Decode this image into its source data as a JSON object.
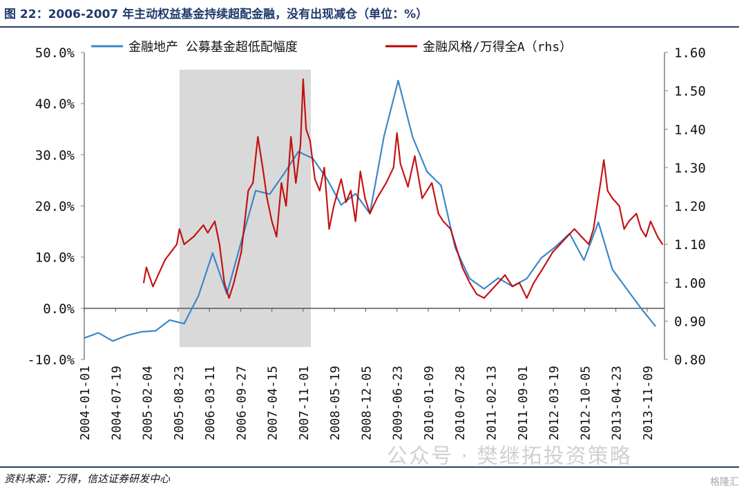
{
  "header": {
    "title": "图 22：2006-2007 年主动权益基金持续超配金融，没有出现减仓（单位：%）"
  },
  "footer": {
    "source": "资料来源：万得，信达证券研发中心",
    "watermark": "公众号 · 樊继拓投资策略",
    "brand": "格隆汇"
  },
  "colors": {
    "series1": "#3a87c8",
    "series2": "#c00000",
    "shade": "#d9d9d9",
    "axis": "#7f7f7f",
    "title": "#1f3a6b"
  },
  "chart_data": {
    "type": "line",
    "left_axis": {
      "ylim": [
        -10,
        50
      ],
      "ticks": [
        "-10.0%",
        "0.0%",
        "10.0%",
        "20.0%",
        "30.0%",
        "40.0%",
        "50.0%"
      ]
    },
    "right_axis": {
      "ylim": [
        0.8,
        1.6
      ],
      "ticks": [
        "0.80",
        "0.90",
        "1.00",
        "1.10",
        "1.20",
        "1.30",
        "1.40",
        "1.50",
        "1.60"
      ]
    },
    "x_ticks": [
      "2004-01-01",
      "2004-07-19",
      "2005-02-04",
      "2005-08-23",
      "2006-03-11",
      "2006-09-27",
      "2007-04-15",
      "2007-11-01",
      "2008-05-19",
      "2008-12-05",
      "2009-06-23",
      "2010-01-09",
      "2010-07-28",
      "2011-02-13",
      "2011-09-01",
      "2012-03-19",
      "2012-10-05",
      "2013-04-23",
      "2013-11-09"
    ],
    "xlim": [
      "2004-01-01",
      "2014-02-28"
    ],
    "shaded_region": {
      "start": "2005-09-01",
      "end": "2007-12-20"
    },
    "series": [
      {
        "name": "金融地产 公募基金超低配幅度",
        "axis": "left",
        "points": [
          [
            "2004-01-01",
            -5.8
          ],
          [
            "2004-04-01",
            -4.8
          ],
          [
            "2004-07-01",
            -6.4
          ],
          [
            "2004-10-01",
            -5.3
          ],
          [
            "2005-01-01",
            -4.6
          ],
          [
            "2005-04-01",
            -4.4
          ],
          [
            "2005-07-01",
            -2.3
          ],
          [
            "2005-10-01",
            -3.0
          ],
          [
            "2006-01-01",
            2.5
          ],
          [
            "2006-04-01",
            10.8
          ],
          [
            "2006-07-01",
            2.8
          ],
          [
            "2006-10-01",
            13.0
          ],
          [
            "2007-01-01",
            23.0
          ],
          [
            "2007-04-01",
            22.3
          ],
          [
            "2007-07-01",
            26.3
          ],
          [
            "2007-10-01",
            30.6
          ],
          [
            "2008-01-01",
            29.3
          ],
          [
            "2008-04-01",
            25.3
          ],
          [
            "2008-07-01",
            20.2
          ],
          [
            "2008-10-01",
            22.4
          ],
          [
            "2009-01-01",
            18.5
          ],
          [
            "2009-04-01",
            33.6
          ],
          [
            "2009-07-01",
            44.5
          ],
          [
            "2009-10-01",
            33.5
          ],
          [
            "2010-01-01",
            26.7
          ],
          [
            "2010-04-01",
            24.0
          ],
          [
            "2010-07-01",
            11.8
          ],
          [
            "2010-10-01",
            5.8
          ],
          [
            "2011-01-01",
            3.8
          ],
          [
            "2011-04-01",
            5.9
          ],
          [
            "2011-07-01",
            4.3
          ],
          [
            "2011-10-01",
            5.8
          ],
          [
            "2012-01-01",
            9.8
          ],
          [
            "2012-04-01",
            12.0
          ],
          [
            "2012-07-01",
            14.6
          ],
          [
            "2012-10-01",
            9.4
          ],
          [
            "2013-01-01",
            16.8
          ],
          [
            "2013-04-01",
            7.6
          ],
          [
            "2013-07-01",
            3.8
          ],
          [
            "2013-10-01",
            0.0
          ],
          [
            "2014-01-01",
            -3.5
          ]
        ]
      },
      {
        "name": "金融风格/万得全A（rhs）",
        "axis": "right",
        "points": [
          [
            "2005-01-15",
            1.0
          ],
          [
            "2005-02-01",
            1.04
          ],
          [
            "2005-03-15",
            0.99
          ],
          [
            "2005-06-01",
            1.06
          ],
          [
            "2005-08-15",
            1.1
          ],
          [
            "2005-09-01",
            1.14
          ],
          [
            "2005-10-01",
            1.1
          ],
          [
            "2005-12-01",
            1.12
          ],
          [
            "2006-02-01",
            1.15
          ],
          [
            "2006-03-01",
            1.13
          ],
          [
            "2006-04-15",
            1.16
          ],
          [
            "2006-05-15",
            1.1
          ],
          [
            "2006-06-15",
            1.0
          ],
          [
            "2006-07-15",
            0.96
          ],
          [
            "2006-08-15",
            1.0
          ],
          [
            "2006-10-01",
            1.08
          ],
          [
            "2006-11-15",
            1.24
          ],
          [
            "2006-12-15",
            1.26
          ],
          [
            "2007-01-15",
            1.38
          ],
          [
            "2007-02-15",
            1.3
          ],
          [
            "2007-03-15",
            1.22
          ],
          [
            "2007-04-15",
            1.16
          ],
          [
            "2007-05-15",
            1.12
          ],
          [
            "2007-06-15",
            1.26
          ],
          [
            "2007-07-15",
            1.2
          ],
          [
            "2007-08-15",
            1.38
          ],
          [
            "2007-09-15",
            1.26
          ],
          [
            "2007-10-15",
            1.36
          ],
          [
            "2007-11-01",
            1.53
          ],
          [
            "2007-11-20",
            1.4
          ],
          [
            "2007-12-15",
            1.37
          ],
          [
            "2008-01-15",
            1.27
          ],
          [
            "2008-02-15",
            1.24
          ],
          [
            "2008-03-15",
            1.3
          ],
          [
            "2008-04-15",
            1.14
          ],
          [
            "2008-05-15",
            1.2
          ],
          [
            "2008-07-01",
            1.27
          ],
          [
            "2008-08-01",
            1.21
          ],
          [
            "2008-09-01",
            1.24
          ],
          [
            "2008-10-01",
            1.16
          ],
          [
            "2008-11-01",
            1.29
          ],
          [
            "2008-12-01",
            1.22
          ],
          [
            "2009-01-01",
            1.18
          ],
          [
            "2009-02-15",
            1.22
          ],
          [
            "2009-04-15",
            1.26
          ],
          [
            "2009-06-01",
            1.3
          ],
          [
            "2009-06-23",
            1.39
          ],
          [
            "2009-07-15",
            1.31
          ],
          [
            "2009-09-01",
            1.25
          ],
          [
            "2009-10-15",
            1.33
          ],
          [
            "2009-12-01",
            1.22
          ],
          [
            "2010-02-01",
            1.26
          ],
          [
            "2010-03-15",
            1.18
          ],
          [
            "2010-04-15",
            1.16
          ],
          [
            "2010-06-01",
            1.14
          ],
          [
            "2010-07-01",
            1.1
          ],
          [
            "2010-08-15",
            1.04
          ],
          [
            "2010-10-01",
            1.0
          ],
          [
            "2010-11-15",
            0.97
          ],
          [
            "2011-01-01",
            0.96
          ],
          [
            "2011-02-15",
            0.98
          ],
          [
            "2011-04-01",
            1.0
          ],
          [
            "2011-05-15",
            1.02
          ],
          [
            "2011-07-01",
            0.99
          ],
          [
            "2011-08-15",
            1.0
          ],
          [
            "2011-10-01",
            0.96
          ],
          [
            "2011-11-15",
            1.0
          ],
          [
            "2012-01-01",
            1.03
          ],
          [
            "2012-02-15",
            1.06
          ],
          [
            "2012-03-15",
            1.08
          ],
          [
            "2012-05-01",
            1.1
          ],
          [
            "2012-06-15",
            1.12
          ],
          [
            "2012-08-01",
            1.14
          ],
          [
            "2012-09-15",
            1.12
          ],
          [
            "2012-11-01",
            1.1
          ],
          [
            "2012-12-01",
            1.14
          ],
          [
            "2013-01-15",
            1.26
          ],
          [
            "2013-02-05",
            1.32
          ],
          [
            "2013-03-01",
            1.24
          ],
          [
            "2013-04-01",
            1.22
          ],
          [
            "2013-05-15",
            1.2
          ],
          [
            "2013-06-15",
            1.14
          ],
          [
            "2013-07-15",
            1.16
          ],
          [
            "2013-09-01",
            1.18
          ],
          [
            "2013-10-01",
            1.14
          ],
          [
            "2013-11-01",
            1.12
          ],
          [
            "2013-12-01",
            1.16
          ],
          [
            "2014-01-15",
            1.12
          ],
          [
            "2014-02-15",
            1.1
          ]
        ]
      }
    ]
  }
}
